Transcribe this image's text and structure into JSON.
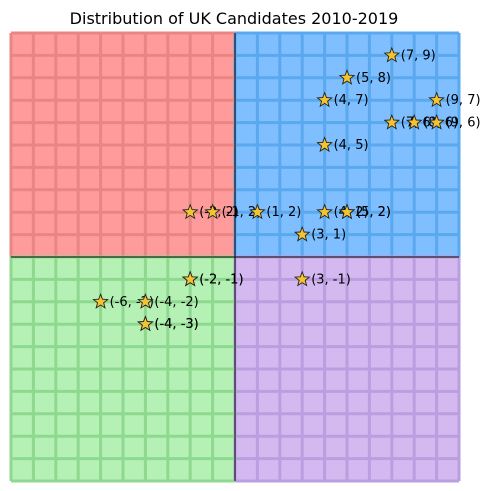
{
  "chart_data": {
    "type": "scatter",
    "title": "Distribution of UK Candidates 2010-2019",
    "xlabel": "",
    "ylabel": "",
    "xlim": [
      -10,
      10
    ],
    "ylim": [
      -10,
      10
    ],
    "grid": true,
    "axes_visible": false,
    "marker": "star",
    "marker_color": "#f4c430",
    "quadrant_colors": {
      "top_left": "#ff9b9b",
      "top_right": "#7fbfff",
      "bottom_left": "#b5f0b5",
      "bottom_right": "#d4b8f0"
    },
    "quadrant_grid_colors": {
      "top_left": "#e88585",
      "top_right": "#5aa8ee",
      "bottom_left": "#8fd88f",
      "bottom_right": "#bb9ee0"
    },
    "points": [
      {
        "x": 7,
        "y": 9,
        "label": "(7, 9)"
      },
      {
        "x": 5,
        "y": 8,
        "label": "(5, 8)"
      },
      {
        "x": 4,
        "y": 7,
        "label": "(4, 7)"
      },
      {
        "x": 9,
        "y": 7,
        "label": "(9, 7)"
      },
      {
        "x": 7,
        "y": 6,
        "label": "(7, 6)"
      },
      {
        "x": 8,
        "y": 6,
        "label": "(8, 6)"
      },
      {
        "x": 9,
        "y": 6,
        "label": "(9, 6)"
      },
      {
        "x": 4,
        "y": 5,
        "label": "(4, 5)"
      },
      {
        "x": -2,
        "y": 2,
        "label": "(-2, 2)"
      },
      {
        "x": -1,
        "y": 2,
        "label": "(-1, 2)"
      },
      {
        "x": 1,
        "y": 2,
        "label": "(1, 2)"
      },
      {
        "x": 4,
        "y": 2,
        "label": "(4, 2)"
      },
      {
        "x": 5,
        "y": 2,
        "label": "(5, 2)"
      },
      {
        "x": 5,
        "y": 2,
        "label": "(5, 2)"
      },
      {
        "x": 3,
        "y": 1,
        "label": "(3, 1)"
      },
      {
        "x": -2,
        "y": -1,
        "label": "(-2, -1)"
      },
      {
        "x": -2,
        "y": -1,
        "label": "(-2, -1)"
      },
      {
        "x": 3,
        "y": -1,
        "label": "(3, -1)"
      },
      {
        "x": -6,
        "y": -2,
        "label": "(-6, -2)"
      },
      {
        "x": -4,
        "y": -2,
        "label": "(-4, -2)"
      },
      {
        "x": -4,
        "y": -3,
        "label": "(-4, -3)"
      },
      {
        "x": -4,
        "y": -3,
        "label": "(-4, -3)"
      }
    ]
  }
}
